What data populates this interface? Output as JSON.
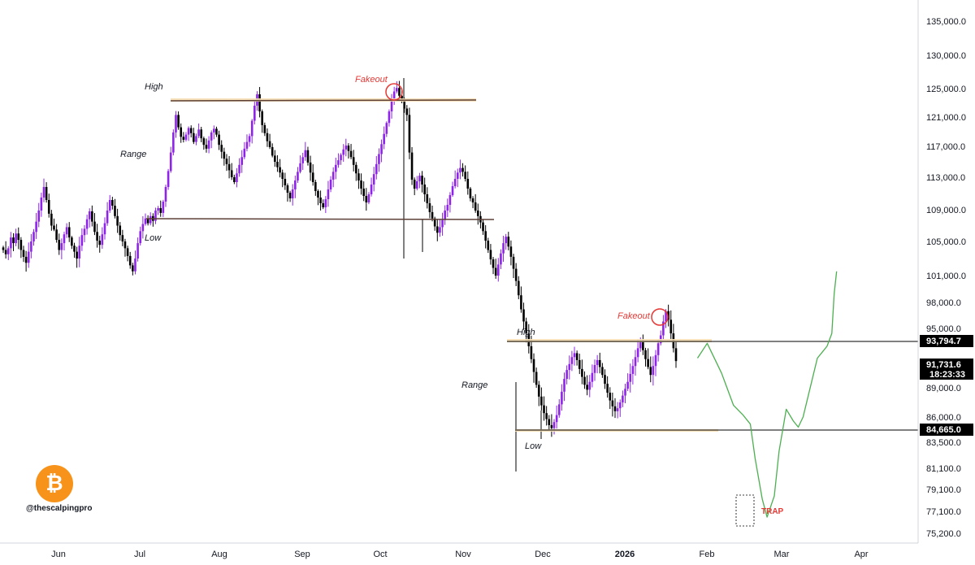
{
  "chart_data": {
    "type": "candlestick",
    "symbol_logo": "bitcoin-logo",
    "watermark": "@thescalpingpro",
    "x_labels": [
      "Jun",
      "Jul",
      "Aug",
      "Sep",
      "Oct",
      "Nov",
      "Dec",
      "2026",
      "Feb",
      "Mar",
      "Apr"
    ],
    "y_ticks": [
      "135,000.0",
      "130,000.0",
      "125,000.0",
      "121,000.0",
      "117,000.0",
      "113,000.0",
      "109,000.0",
      "105,000.0",
      "101,000.0",
      "98,000.0",
      "95,000.0",
      "89,000.0",
      "86,000.0",
      "83,500.0",
      "81,100.0",
      "79,100.0",
      "77,100.0",
      "75,200.0"
    ],
    "price_tags": [
      {
        "label": "93,794.7",
        "value": 93794.7,
        "style": "black"
      },
      {
        "label": "91,731.6",
        "value": 91731.6,
        "style": "black",
        "sub": "18:23:33"
      },
      {
        "label": "84,665.0",
        "value": 84665.0,
        "style": "black"
      }
    ],
    "levels": [
      {
        "name": "range1-high",
        "price": 123300,
        "from": "2025-07-13",
        "to": "2025-11-10"
      },
      {
        "name": "range1-low",
        "price": 107600,
        "from": "2025-07-13",
        "to": "2025-11-12"
      },
      {
        "name": "range2-high",
        "price": 93794.7,
        "from": "2025-11-20",
        "to": "2026-04-30"
      },
      {
        "name": "range2-low",
        "price": 84665.0,
        "from": "2025-11-20",
        "to": "2026-04-30"
      }
    ],
    "annotations": {
      "high1": "High",
      "range1": "Range",
      "low1": "Low",
      "fakeout1": "Fakeout",
      "high2": "High",
      "range2": "Range",
      "low2": "Low",
      "fakeout2": "Fakeout",
      "trap": "TRAP"
    },
    "closes": [
      104000,
      103500,
      104200,
      105500,
      104800,
      106000,
      105200,
      104000,
      103200,
      102500,
      103800,
      105000,
      106200,
      107500,
      108900,
      110500,
      111800,
      110200,
      108500,
      107000,
      106500,
      105200,
      104000,
      104800,
      105900,
      106800,
      105500,
      104500,
      103800,
      103000,
      104500,
      105800,
      106600,
      107800,
      108800,
      107500,
      106200,
      105100,
      104600,
      105900,
      107300,
      108900,
      110200,
      109500,
      108200,
      107000,
      105800,
      105000,
      104200,
      103300,
      102200,
      101500,
      103000,
      104800,
      106300,
      107200,
      107900,
      107300,
      108200,
      107600,
      108900,
      109200,
      108600,
      110000,
      111800,
      113800,
      116200,
      118900,
      121300,
      119600,
      118300,
      117900,
      118600,
      119500,
      118800,
      117600,
      118400,
      119300,
      118100,
      117200,
      116700,
      117800,
      118900,
      119400,
      118600,
      117200,
      116300,
      115400,
      114700,
      113900,
      113000,
      112400,
      113500,
      114600,
      115600,
      116700,
      117600,
      118400,
      120500,
      122600,
      124200,
      121800,
      119900,
      118800,
      117700,
      116900,
      115800,
      115000,
      114300,
      113600,
      112800,
      112000,
      111100,
      110400,
      111500,
      112600,
      113700,
      114800,
      115600,
      116500,
      114900,
      113600,
      112400,
      111300,
      110500,
      109800,
      109300,
      110300,
      111500,
      112700,
      113700,
      114600,
      115200,
      115900,
      116600,
      117100,
      116400,
      115600,
      114600,
      113500,
      112600,
      111600,
      110700,
      109900,
      110900,
      112100,
      113400,
      114700,
      116000,
      117300,
      118700,
      120200,
      121800,
      123400,
      124600,
      125100,
      124000,
      123300,
      122200,
      121300,
      116200,
      112700,
      111600,
      112500,
      113200,
      112100,
      110900,
      109800,
      108700,
      107900,
      106900,
      106100,
      106800,
      107700,
      108900,
      109600,
      110800,
      111900,
      112800,
      113600,
      114200,
      113700,
      112800,
      111600,
      110400,
      109900,
      108900,
      108200,
      107400,
      106300,
      105100,
      104000,
      102900,
      101900,
      101000,
      102300,
      103600,
      104800,
      105600,
      104400,
      103200,
      101800,
      100400,
      98800,
      97200,
      95800,
      94500,
      93200,
      91900,
      90600,
      89300,
      88100,
      87200,
      86400,
      85800,
      85200,
      84900,
      85500,
      86200,
      87300,
      88600,
      89900,
      90800,
      91400,
      92100,
      92500,
      91800,
      90900,
      90100,
      89300,
      88800,
      89600,
      90500,
      91300,
      91800,
      91100,
      90300,
      89400,
      88500,
      87700,
      87100,
      86600,
      86900,
      87500,
      88200,
      88900,
      89600,
      90400,
      91200,
      92100,
      93000,
      93600,
      92800,
      91900,
      91100,
      90300,
      91200,
      92300,
      93500,
      94300,
      95800,
      97000,
      96000,
      94500,
      93000,
      91700
    ],
    "projection": {
      "description": "hand-drawn projected path",
      "points": [
        [
          9,
          92000
        ],
        [
          13,
          93500
        ],
        [
          19,
          90500
        ],
        [
          24,
          87200
        ],
        [
          28,
          86200
        ],
        [
          31,
          85300
        ],
        [
          33,
          82000
        ],
        [
          36,
          78200
        ],
        [
          38,
          76600
        ],
        [
          41,
          78500
        ],
        [
          43,
          82700
        ],
        [
          46,
          86800
        ],
        [
          49,
          85600
        ],
        [
          51,
          85000
        ],
        [
          53,
          86000
        ],
        [
          57,
          90000
        ],
        [
          59,
          92000
        ],
        [
          61,
          92600
        ],
        [
          63,
          93200
        ],
        [
          65,
          94500
        ],
        [
          66,
          99000
        ],
        [
          67,
          101500
        ]
      ]
    },
    "trap_box": {
      "label": "TRAP"
    },
    "ylim": [
      74700,
      136800
    ]
  }
}
